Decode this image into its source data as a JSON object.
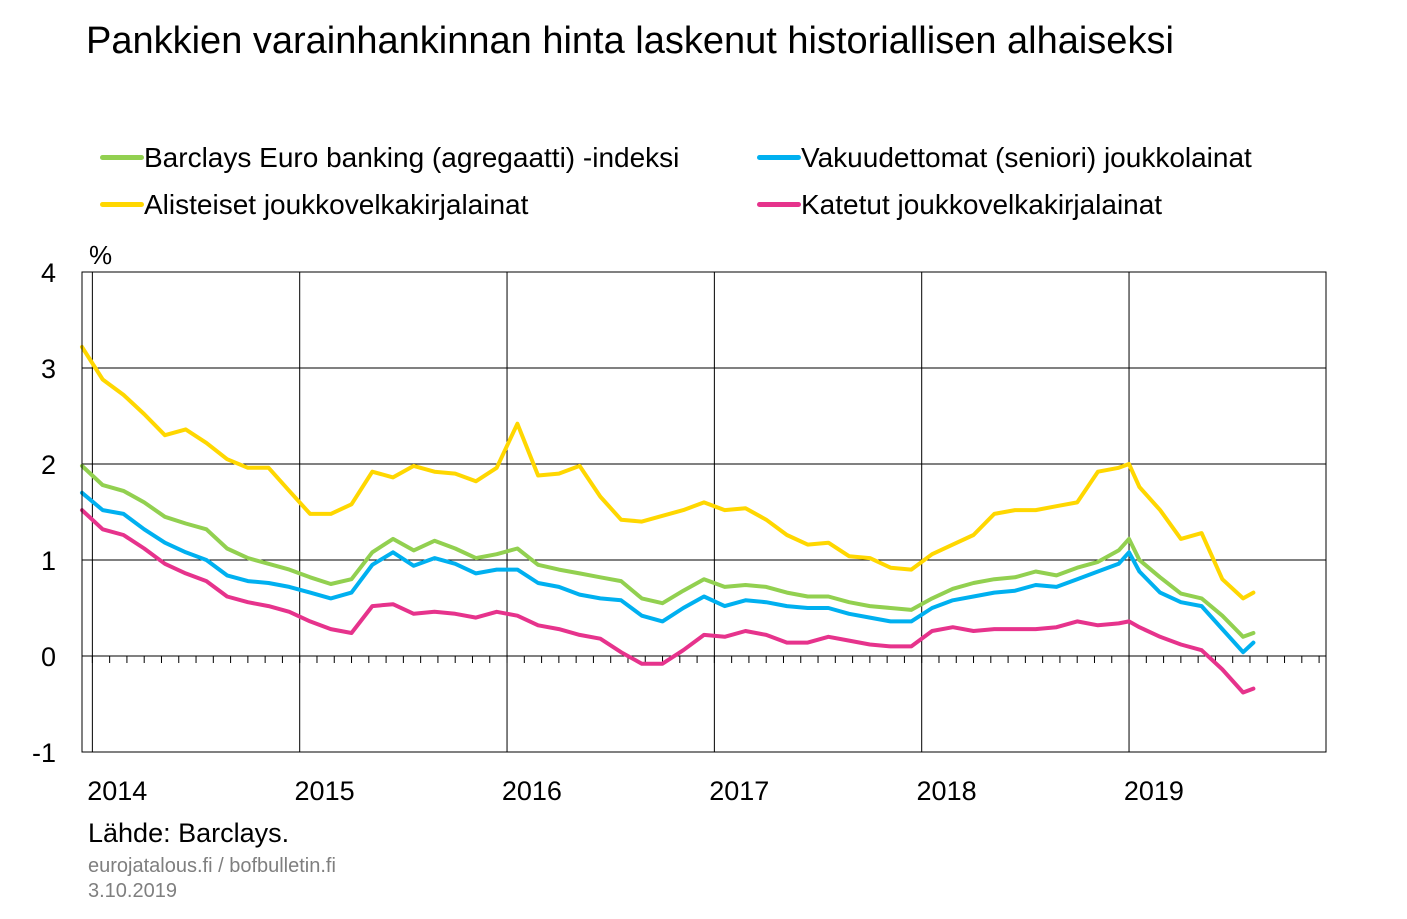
{
  "title": "Pankkien varainhankinnan hinta laskenut historiallisen alhaiseksi",
  "source": "Lähde: Barclays.",
  "site": "eurojatalous.fi  / bofbulletin.fi",
  "date": "3.10.2019",
  "colors": {
    "barclays": "#92d050",
    "senior": "#00b0f0",
    "subordinated": "#ffd700",
    "covered": "#e6338c"
  },
  "chart_data": {
    "type": "line",
    "ylabel": "%",
    "ylim": [
      -1,
      4
    ],
    "yticks": [
      "4",
      "3",
      "2",
      "1",
      "0",
      "-1"
    ],
    "xlim": [
      2013.95,
      2019.95
    ],
    "xticks": [
      "2014",
      "2015",
      "2016",
      "2017",
      "2018",
      "2019"
    ],
    "grid": true,
    "legend_position": "top",
    "series": [
      {
        "name": "Barclays Euro banking (agregaatti) -indeksi",
        "color": "#92d050",
        "x": [
          2013.95,
          2014.05,
          2014.15,
          2014.25,
          2014.35,
          2014.45,
          2014.55,
          2014.65,
          2014.75,
          2014.85,
          2014.95,
          2015.05,
          2015.15,
          2015.25,
          2015.35,
          2015.45,
          2015.55,
          2015.65,
          2015.75,
          2015.85,
          2015.95,
          2016.05,
          2016.15,
          2016.25,
          2016.35,
          2016.45,
          2016.55,
          2016.65,
          2016.75,
          2016.85,
          2016.95,
          2017.05,
          2017.15,
          2017.25,
          2017.35,
          2017.45,
          2017.55,
          2017.65,
          2017.75,
          2017.85,
          2017.95,
          2018.05,
          2018.15,
          2018.25,
          2018.35,
          2018.45,
          2018.55,
          2018.65,
          2018.75,
          2018.85,
          2018.95,
          2019.0,
          2019.05,
          2019.15,
          2019.25,
          2019.35,
          2019.45,
          2019.55,
          2019.6
        ],
        "y": [
          1.98,
          1.78,
          1.72,
          1.6,
          1.45,
          1.38,
          1.32,
          1.12,
          1.02,
          0.96,
          0.9,
          0.82,
          0.75,
          0.8,
          1.08,
          1.22,
          1.1,
          1.2,
          1.12,
          1.02,
          1.06,
          1.12,
          0.95,
          0.9,
          0.86,
          0.82,
          0.78,
          0.6,
          0.55,
          0.68,
          0.8,
          0.72,
          0.74,
          0.72,
          0.66,
          0.62,
          0.62,
          0.56,
          0.52,
          0.5,
          0.48,
          0.6,
          0.7,
          0.76,
          0.8,
          0.82,
          0.88,
          0.84,
          0.92,
          0.98,
          1.1,
          1.22,
          1.0,
          0.82,
          0.65,
          0.6,
          0.42,
          0.2,
          0.24
        ]
      },
      {
        "name": "Vakuudettomat (seniori) joukkolainat",
        "color": "#00b0f0",
        "x": [
          2013.95,
          2014.05,
          2014.15,
          2014.25,
          2014.35,
          2014.45,
          2014.55,
          2014.65,
          2014.75,
          2014.85,
          2014.95,
          2015.05,
          2015.15,
          2015.25,
          2015.35,
          2015.45,
          2015.55,
          2015.65,
          2015.75,
          2015.85,
          2015.95,
          2016.05,
          2016.15,
          2016.25,
          2016.35,
          2016.45,
          2016.55,
          2016.65,
          2016.75,
          2016.85,
          2016.95,
          2017.05,
          2017.15,
          2017.25,
          2017.35,
          2017.45,
          2017.55,
          2017.65,
          2017.75,
          2017.85,
          2017.95,
          2018.05,
          2018.15,
          2018.25,
          2018.35,
          2018.45,
          2018.55,
          2018.65,
          2018.75,
          2018.85,
          2018.95,
          2019.0,
          2019.05,
          2019.15,
          2019.25,
          2019.35,
          2019.45,
          2019.55,
          2019.6
        ],
        "y": [
          1.7,
          1.52,
          1.48,
          1.32,
          1.18,
          1.08,
          1.0,
          0.84,
          0.78,
          0.76,
          0.72,
          0.66,
          0.6,
          0.66,
          0.95,
          1.08,
          0.94,
          1.02,
          0.96,
          0.86,
          0.9,
          0.9,
          0.76,
          0.72,
          0.64,
          0.6,
          0.58,
          0.42,
          0.36,
          0.5,
          0.62,
          0.52,
          0.58,
          0.56,
          0.52,
          0.5,
          0.5,
          0.44,
          0.4,
          0.36,
          0.36,
          0.5,
          0.58,
          0.62,
          0.66,
          0.68,
          0.74,
          0.72,
          0.8,
          0.88,
          0.96,
          1.08,
          0.88,
          0.66,
          0.56,
          0.52,
          0.28,
          0.04,
          0.14
        ]
      },
      {
        "name": "Alisteiset joukkovelkakirjalainat",
        "color": "#ffd700",
        "x": [
          2013.95,
          2014.05,
          2014.15,
          2014.25,
          2014.35,
          2014.45,
          2014.55,
          2014.65,
          2014.75,
          2014.85,
          2014.95,
          2015.05,
          2015.15,
          2015.25,
          2015.35,
          2015.45,
          2015.55,
          2015.65,
          2015.75,
          2015.85,
          2015.95,
          2016.05,
          2016.15,
          2016.25,
          2016.35,
          2016.45,
          2016.55,
          2016.65,
          2016.75,
          2016.85,
          2016.95,
          2017.05,
          2017.15,
          2017.25,
          2017.35,
          2017.45,
          2017.55,
          2017.65,
          2017.75,
          2017.85,
          2017.95,
          2018.05,
          2018.15,
          2018.25,
          2018.35,
          2018.45,
          2018.55,
          2018.65,
          2018.75,
          2018.85,
          2018.95,
          2019.0,
          2019.05,
          2019.15,
          2019.25,
          2019.35,
          2019.45,
          2019.55,
          2019.6
        ],
        "y": [
          3.22,
          2.88,
          2.72,
          2.52,
          2.3,
          2.36,
          2.22,
          2.05,
          1.96,
          1.96,
          1.72,
          1.48,
          1.48,
          1.58,
          1.92,
          1.86,
          1.98,
          1.92,
          1.9,
          1.82,
          1.96,
          2.42,
          1.88,
          1.9,
          1.98,
          1.66,
          1.42,
          1.4,
          1.46,
          1.52,
          1.6,
          1.52,
          1.54,
          1.42,
          1.26,
          1.16,
          1.18,
          1.04,
          1.02,
          0.92,
          0.9,
          1.06,
          1.16,
          1.26,
          1.48,
          1.52,
          1.52,
          1.56,
          1.6,
          1.92,
          1.96,
          2.0,
          1.76,
          1.52,
          1.22,
          1.28,
          0.8,
          0.6,
          0.66
        ]
      },
      {
        "name": "Katetut joukkovelkakirjalainat",
        "color": "#e6338c",
        "x": [
          2013.95,
          2014.05,
          2014.15,
          2014.25,
          2014.35,
          2014.45,
          2014.55,
          2014.65,
          2014.75,
          2014.85,
          2014.95,
          2015.05,
          2015.15,
          2015.25,
          2015.35,
          2015.45,
          2015.55,
          2015.65,
          2015.75,
          2015.85,
          2015.95,
          2016.05,
          2016.15,
          2016.25,
          2016.35,
          2016.45,
          2016.55,
          2016.65,
          2016.75,
          2016.85,
          2016.95,
          2017.05,
          2017.15,
          2017.25,
          2017.35,
          2017.45,
          2017.55,
          2017.65,
          2017.75,
          2017.85,
          2017.95,
          2018.05,
          2018.15,
          2018.25,
          2018.35,
          2018.45,
          2018.55,
          2018.65,
          2018.75,
          2018.85,
          2018.95,
          2019.0,
          2019.05,
          2019.15,
          2019.25,
          2019.35,
          2019.45,
          2019.55,
          2019.6
        ],
        "y": [
          1.52,
          1.32,
          1.26,
          1.12,
          0.96,
          0.86,
          0.78,
          0.62,
          0.56,
          0.52,
          0.46,
          0.36,
          0.28,
          0.24,
          0.52,
          0.54,
          0.44,
          0.46,
          0.44,
          0.4,
          0.46,
          0.42,
          0.32,
          0.28,
          0.22,
          0.18,
          0.04,
          -0.08,
          -0.08,
          0.06,
          0.22,
          0.2,
          0.26,
          0.22,
          0.14,
          0.14,
          0.2,
          0.16,
          0.12,
          0.1,
          0.1,
          0.26,
          0.3,
          0.26,
          0.28,
          0.28,
          0.28,
          0.3,
          0.36,
          0.32,
          0.34,
          0.36,
          0.3,
          0.2,
          0.12,
          0.06,
          -0.14,
          -0.38,
          -0.34
        ]
      }
    ]
  }
}
